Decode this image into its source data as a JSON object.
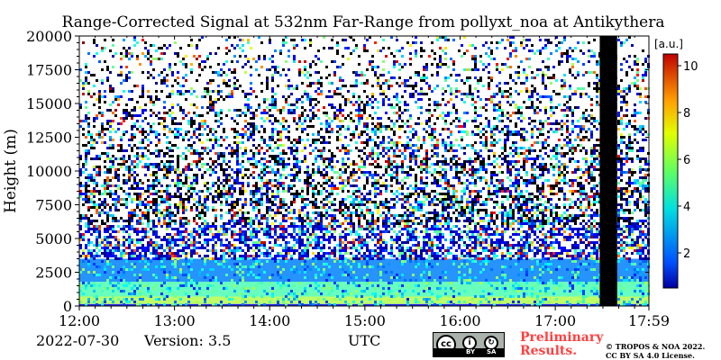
{
  "chart_data": {
    "type": "heatmap",
    "title": "Range-Corrected Signal at 532nm Far-Range from pollyxt_noa at Antikythera",
    "ylabel": "Height (m)",
    "xlabel": "UTC",
    "x_tick_labels": [
      "12:00",
      "13:00",
      "14:00",
      "15:00",
      "16:00",
      "17:00",
      "17:59"
    ],
    "x_tick_minutes": [
      0,
      60,
      120,
      180,
      240,
      300,
      359
    ],
    "y_ticks": [
      0,
      2500,
      5000,
      7500,
      10000,
      12500,
      15000,
      17500,
      20000
    ],
    "y_tick_labels": [
      "0",
      "2500",
      "5000",
      "7500",
      "10000",
      "12500",
      "15000",
      "17500",
      "20000"
    ],
    "xlim_minutes": [
      0,
      359
    ],
    "ylim": [
      0,
      20000
    ],
    "colorbar": {
      "label": "[a.u.]",
      "range": [
        0.5,
        10.5
      ],
      "ticks": [
        2,
        4,
        6,
        8,
        10
      ],
      "tick_labels": [
        "2",
        "4",
        "6",
        "8",
        "10"
      ],
      "colormap": "jet"
    },
    "data_gap_minutes": [
      328,
      339
    ],
    "profile_layers": [
      {
        "height_range": [
          0,
          150
        ],
        "value": 1.5
      },
      {
        "height_range": [
          150,
          700
        ],
        "value": 6.0
      },
      {
        "height_range": [
          700,
          1800
        ],
        "value": 5.0
      },
      {
        "height_range": [
          1800,
          3500
        ],
        "value": 3.0
      },
      {
        "height_range": [
          3500,
          20000
        ],
        "value": "noise"
      }
    ]
  },
  "footer": {
    "date": "2022-07-30",
    "version": "Version: 3.5",
    "preliminary_line1": "Preliminary",
    "preliminary_line2": "Results.",
    "copyright_line1": "© TROPOS & NOA 2022.",
    "copyright_line2": "CC BY SA 4.0 License.",
    "license_badge": {
      "cc": "cc",
      "by": "BY",
      "sa": "SA"
    }
  }
}
